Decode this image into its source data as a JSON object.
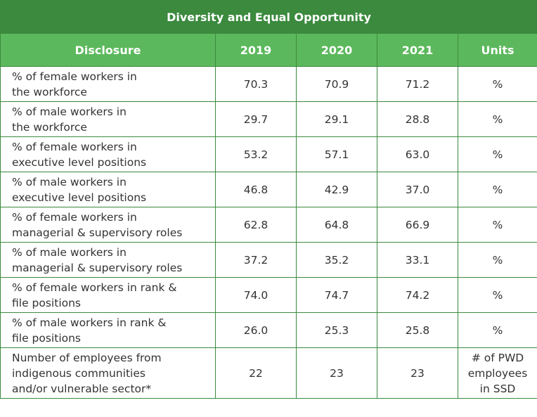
{
  "table": {
    "title": "Diversity and Equal Opportunity",
    "headers": [
      "Disclosure",
      "2019",
      "2020",
      "2021",
      "Units"
    ],
    "rows": [
      {
        "disclosure": [
          "% of female workers in",
          "the workforce"
        ],
        "y2019": "70.3",
        "y2020": "70.9",
        "y2021": "71.2",
        "units": [
          "%"
        ]
      },
      {
        "disclosure": [
          "% of male workers in",
          "the workforce"
        ],
        "y2019": "29.7",
        "y2020": "29.1",
        "y2021": "28.8",
        "units": [
          "%"
        ]
      },
      {
        "disclosure": [
          "% of female workers in",
          "executive level positions"
        ],
        "y2019": "53.2",
        "y2020": "57.1",
        "y2021": "63.0",
        "units": [
          "%"
        ]
      },
      {
        "disclosure": [
          "% of male workers in",
          "executive level positions"
        ],
        "y2019": "46.8",
        "y2020": "42.9",
        "y2021": "37.0",
        "units": [
          "%"
        ]
      },
      {
        "disclosure": [
          "% of female workers in",
          "managerial & supervisory roles"
        ],
        "y2019": "62.8",
        "y2020": "64.8",
        "y2021": "66.9",
        "units": [
          "%"
        ]
      },
      {
        "disclosure": [
          "% of male workers in",
          "managerial & supervisory roles"
        ],
        "y2019": "37.2",
        "y2020": "35.2",
        "y2021": "33.1",
        "units": [
          "%"
        ]
      },
      {
        "disclosure": [
          "% of female workers in rank &",
          "file positions"
        ],
        "y2019": "74.0",
        "y2020": "74.7",
        "y2021": "74.2",
        "units": [
          "%"
        ]
      },
      {
        "disclosure": [
          "% of male workers in rank &",
          "file positions"
        ],
        "y2019": "26.0",
        "y2020": "25.3",
        "y2021": "25.8",
        "units": [
          "%"
        ]
      },
      {
        "disclosure": [
          "Number of employees from",
          "indigenous communities",
          "and/or vulnerable sector*"
        ],
        "y2019": "22",
        "y2020": "23",
        "y2021": "23",
        "units": [
          "# of PWD",
          "employees",
          "in SSD"
        ]
      }
    ]
  }
}
